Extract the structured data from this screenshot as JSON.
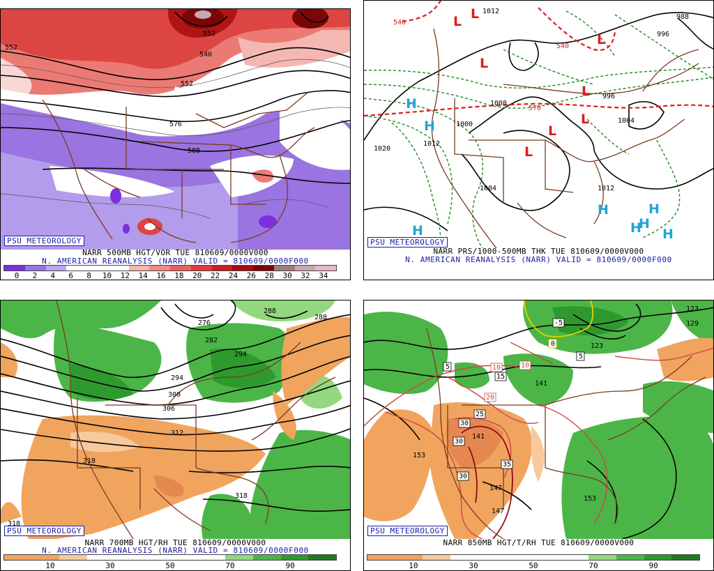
{
  "panels": [
    {
      "logo": "PSU METEOROLOGY",
      "title_line1": "NARR 500MB HGT/VOR TUE 810609/0000V000",
      "title_line2": "N. AMERICAN REANALYSIS (NARR) VALID = 810609/0000F000",
      "colorbar": {
        "colors": [
          "#7b2fe0",
          "#9a74e0",
          "#b9a6ee",
          "#ffffff",
          "#ffffff",
          "#ffffff",
          "#f5b7b2",
          "#f08a84",
          "#e9605c",
          "#dc3b3b",
          "#c8201f",
          "#a40e10",
          "#7a0608",
          "#a07c7c",
          "#c8a8b0",
          "#e8b8c8"
        ],
        "labels": [
          "0",
          "2",
          "4",
          "6",
          "8",
          "10",
          "12",
          "14",
          "16",
          "18",
          "20",
          "22",
          "24",
          "26",
          "28",
          "30",
          "32",
          "34"
        ]
      },
      "contour_labels": [
        "552",
        "540",
        "552",
        "576",
        "588",
        "552"
      ]
    },
    {
      "logo": "PSU METEOROLOGY",
      "title_line1": "NARR PRS/1000-500MB THK TUE 810609/0000V000",
      "title_line2": "N. AMERICAN REANALYSIS (NARR) VALID = 810609/0000F000",
      "contour_labels": [
        "540",
        "540",
        "570",
        "1020",
        "1012",
        "1004",
        "1008",
        "1000",
        "1012",
        "996",
        "1004",
        "988",
        "996",
        "1012"
      ],
      "high_symbol": "H",
      "low_symbol": "L"
    },
    {
      "logo": "PSU METEOROLOGY",
      "title_line1": "NARR 700MB HGT/RH TUE 810609/0000V000",
      "title_line2": "N. AMERICAN REANALYSIS (NARR) VALID = 810609/0000F000",
      "colorbar": {
        "colors": [
          "#f0a45e",
          "#f0a45e",
          "#f7c99d",
          "#ffffff",
          "#ffffff",
          "#ffffff",
          "#ffffff",
          "#ffffff",
          "#93d87e",
          "#4cb548",
          "#2e9a2e",
          "#1f7a1f"
        ],
        "labels": [
          "10",
          "30",
          "50",
          "70",
          "90"
        ]
      },
      "contour_labels": [
        "276",
        "282",
        "288",
        "294",
        "300",
        "306",
        "312",
        "318",
        "318",
        "318",
        "288",
        "294"
      ]
    },
    {
      "logo": "PSU METEOROLOGY",
      "title_line1": "NARR 850MB HGT/T/RH TUE 810609/0000V000",
      "colorbar": {
        "colors": [
          "#f0a45e",
          "#f0a45e",
          "#f7c99d",
          "#ffffff",
          "#ffffff",
          "#ffffff",
          "#ffffff",
          "#ffffff",
          "#93d87e",
          "#4cb548",
          "#2e9a2e",
          "#1f7a1f"
        ],
        "labels": [
          "10",
          "30",
          "50",
          "70",
          "90"
        ]
      },
      "contour_labels": [
        "-5",
        "0",
        "5",
        "5",
        "10",
        "10",
        "15",
        "20",
        "25",
        "30",
        "30",
        "35",
        "30",
        "123",
        "123",
        "129",
        "141",
        "147",
        "147",
        "153",
        "153",
        "141"
      ]
    }
  ]
}
